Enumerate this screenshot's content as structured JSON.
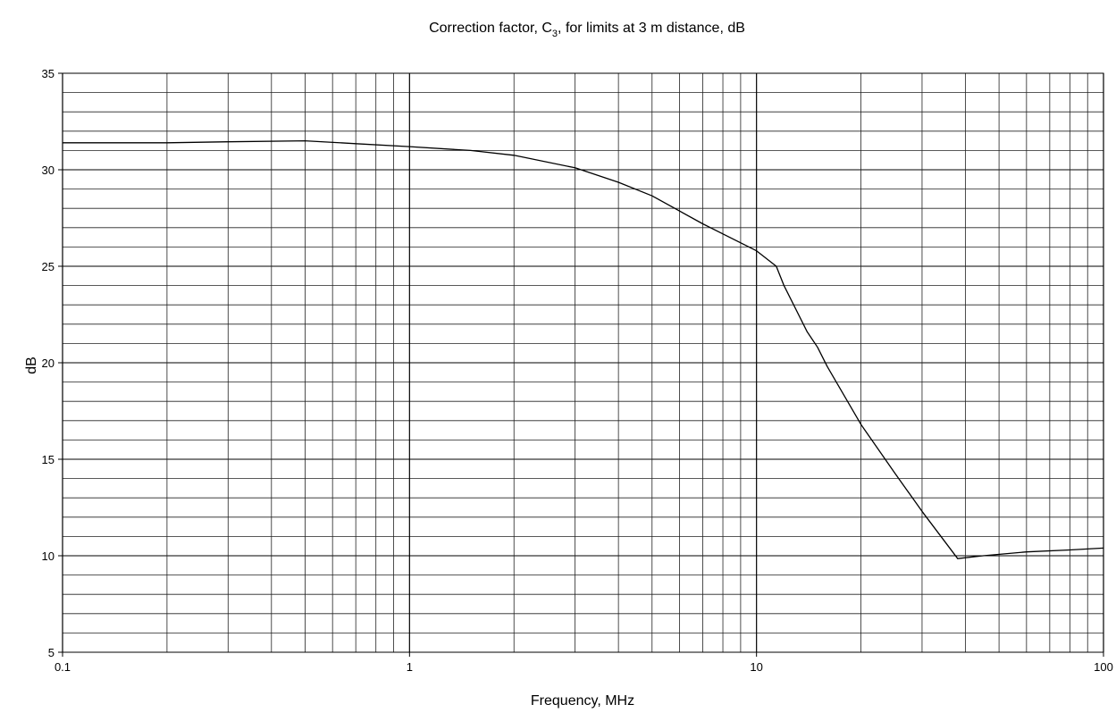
{
  "chart_data": {
    "type": "line",
    "title": "Correction factor, C₃, for limits at 3 m distance, dB",
    "title_parts": {
      "before": "Correction factor, C",
      "sub": "3",
      "after": ", for limits at 3 m distance, dB"
    },
    "xlabel": "Frequency, MHz",
    "ylabel": "dB",
    "x_scale": "log",
    "xlim": [
      0.1,
      100
    ],
    "ylim": [
      5,
      35
    ],
    "x_ticks": [
      0.1,
      1,
      10,
      100
    ],
    "x_tick_labels": [
      "0.1",
      "1",
      "10",
      "100"
    ],
    "y_ticks": [
      5,
      10,
      15,
      20,
      25,
      30,
      35
    ],
    "y_tick_labels": [
      "5",
      "10",
      "15",
      "20",
      "25",
      "30",
      "35"
    ],
    "y_minor_step": 1,
    "grid": true,
    "line_color": "#000000",
    "series": [
      {
        "x": [
          0.1,
          0.2,
          0.3,
          0.5,
          0.7,
          1,
          1.5,
          2,
          3,
          4,
          5,
          7,
          10,
          11.4,
          12,
          14,
          15,
          16,
          20,
          25,
          30,
          38,
          45,
          60,
          80,
          100
        ],
        "y": [
          31.4,
          31.4,
          31.45,
          31.5,
          31.35,
          31.2,
          31.0,
          30.75,
          30.1,
          29.35,
          28.65,
          27.2,
          25.8,
          25.0,
          24.0,
          21.6,
          20.8,
          19.8,
          16.8,
          14.3,
          12.3,
          9.85,
          10.0,
          10.2,
          10.3,
          10.4
        ]
      }
    ]
  }
}
